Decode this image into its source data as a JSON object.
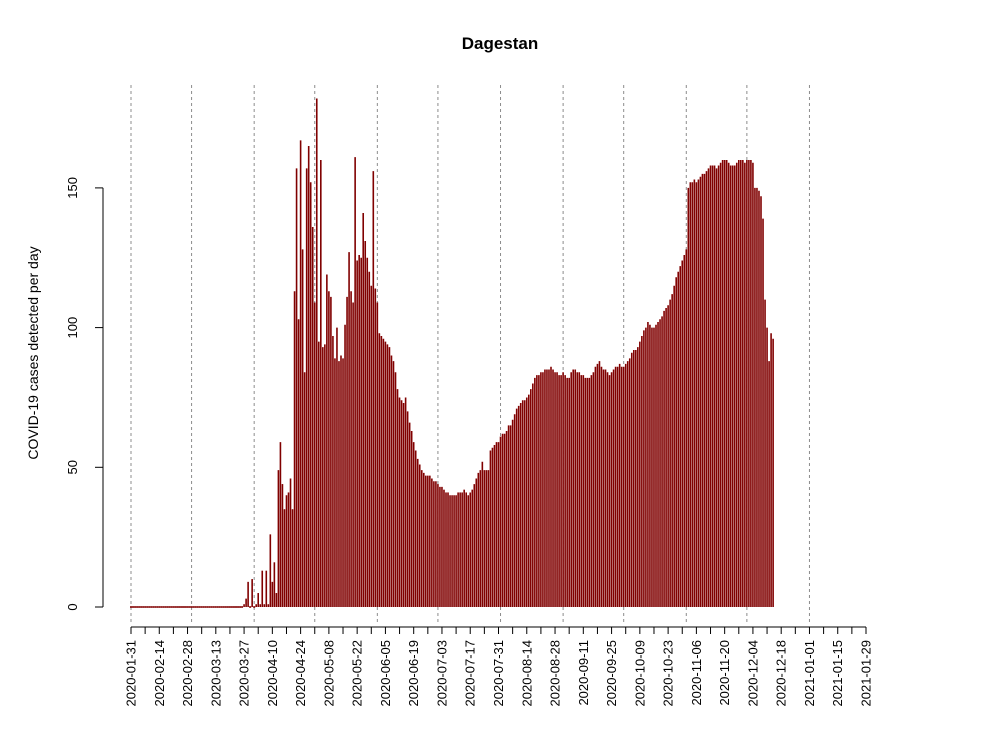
{
  "chart_data": {
    "type": "bar",
    "title": "Dagestan",
    "xlabel": "",
    "ylabel": "COVID-19 cases detected per day",
    "x_start": "2020-01-31",
    "x_end": "2021-01-29",
    "ylim": [
      0,
      182
    ],
    "y_ticks": [
      0,
      50,
      100,
      150
    ],
    "x_tick_labels": [
      "2020-01-31",
      "2020-02-14",
      "2020-02-28",
      "2020-03-13",
      "2020-03-27",
      "2020-04-10",
      "2020-04-24",
      "2020-05-08",
      "2020-05-22",
      "2020-06-05",
      "2020-06-19",
      "2020-07-03",
      "2020-07-17",
      "2020-07-31",
      "2020-08-14",
      "2020-08-28",
      "2020-09-11",
      "2020-09-25",
      "2020-10-09",
      "2020-10-23",
      "2020-11-06",
      "2020-11-20",
      "2020-12-04",
      "2020-12-18",
      "2021-01-01",
      "2021-01-15",
      "2021-01-29"
    ],
    "vlines": [
      "2020-01-31",
      "2020-03-01",
      "2020-04-01",
      "2020-05-01",
      "2020-06-01",
      "2020-07-01",
      "2020-08-01",
      "2020-09-01",
      "2020-10-01",
      "2020-11-01",
      "2020-12-01",
      "2021-01-01"
    ],
    "grid": "dotted vertical lines at month starts",
    "bar_color": "#800000",
    "values": [
      0,
      0,
      0,
      0,
      0,
      0,
      0,
      0,
      0,
      0,
      0,
      0,
      0,
      0,
      0,
      0,
      0,
      0,
      0,
      0,
      0,
      0,
      0,
      0,
      0,
      0,
      0,
      0,
      0,
      0,
      0,
      0,
      0,
      0,
      0,
      0,
      0,
      0,
      0,
      0,
      0,
      0,
      0,
      0,
      0,
      0,
      0,
      0,
      0,
      0,
      0,
      0,
      0,
      0,
      0,
      0,
      1,
      3,
      9,
      0,
      10,
      0,
      1,
      5,
      1,
      13,
      1,
      13,
      1,
      26,
      9,
      16,
      5,
      49,
      59,
      44,
      35,
      40,
      41,
      46,
      35,
      113,
      157,
      103,
      167,
      128,
      84,
      157,
      165,
      152,
      136,
      109,
      182,
      95,
      160,
      93,
      94,
      119,
      113,
      111,
      97,
      89,
      100,
      88,
      90,
      89,
      101,
      111,
      127,
      113,
      109,
      161,
      124,
      126,
      125,
      141,
      131,
      125,
      120,
      115,
      156,
      114,
      109,
      98,
      97,
      96,
      95,
      94,
      93,
      90,
      88,
      84,
      78,
      75,
      74,
      73,
      75,
      70,
      66,
      63,
      59,
      56,
      53,
      51,
      49,
      48,
      47,
      47,
      47,
      46,
      45,
      45,
      44,
      43,
      43,
      42,
      41,
      41,
      40,
      40,
      40,
      40,
      41,
      41,
      41,
      42,
      41,
      40,
      41,
      42,
      44,
      46,
      48,
      49,
      52,
      49,
      49,
      49,
      56,
      57,
      58,
      59,
      59,
      61,
      62,
      62,
      63,
      65,
      65,
      67,
      69,
      71,
      72,
      73,
      74,
      74,
      75,
      76,
      78,
      80,
      82,
      83,
      83,
      84,
      84,
      85,
      85,
      85,
      86,
      85,
      84,
      84,
      83,
      83,
      84,
      83,
      82,
      82,
      84,
      85,
      85,
      84,
      84,
      83,
      83,
      82,
      82,
      82,
      83,
      84,
      86,
      87,
      88,
      86,
      85,
      85,
      84,
      83,
      84,
      85,
      86,
      86,
      87,
      86,
      86,
      87,
      88,
      89,
      91,
      92,
      92,
      93,
      95,
      97,
      99,
      100,
      102,
      101,
      100,
      100,
      101,
      102,
      103,
      104,
      106,
      107,
      108,
      110,
      112,
      115,
      118,
      120,
      122,
      124,
      126,
      128,
      150,
      152,
      152,
      153,
      152,
      153,
      154,
      155,
      155,
      156,
      157,
      158,
      158,
      158,
      157,
      158,
      159,
      160,
      160,
      160,
      159,
      158,
      158,
      158,
      159,
      160,
      160,
      160,
      159,
      160,
      160,
      160,
      159,
      150,
      150,
      149,
      147,
      139,
      110,
      100,
      88,
      98,
      96
    ]
  }
}
